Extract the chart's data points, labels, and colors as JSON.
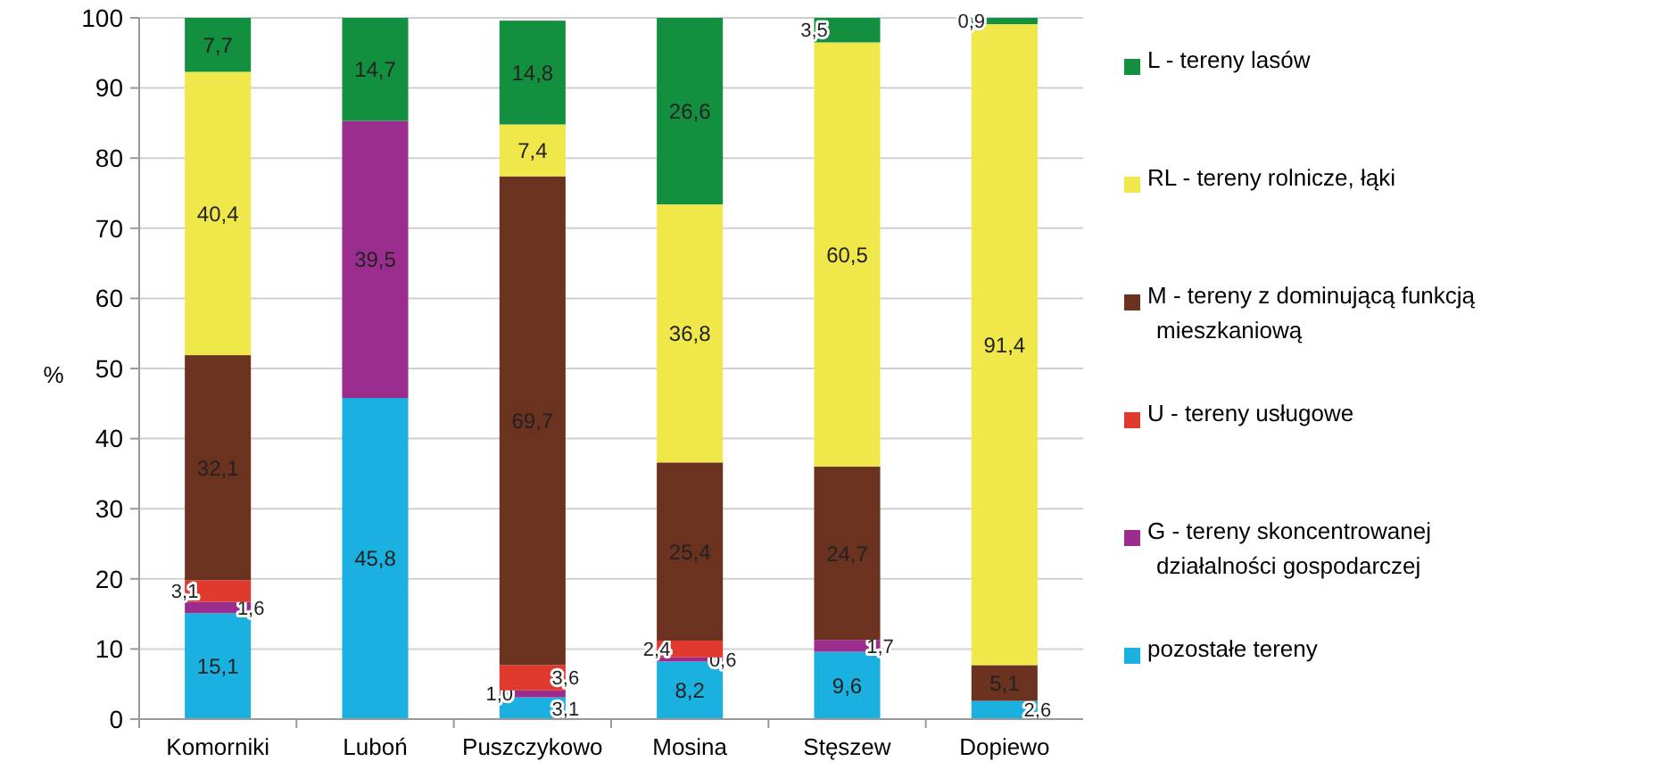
{
  "chart_data": {
    "type": "bar",
    "stacked": true,
    "ylabel": "%",
    "categories": [
      "Komorniki",
      "Luboń",
      "Puszczykowo",
      "Mosina",
      "Stęszew",
      "Dopiewo"
    ],
    "series": [
      {
        "name": "pozostałe tereny",
        "color": "#1ab0e0",
        "values": [
          15.1,
          45.8,
          3.1,
          8.2,
          9.6,
          2.6
        ],
        "value_labels": [
          "15,1",
          "45,8",
          "3,1",
          "8,2",
          "9,6",
          "2,6"
        ]
      },
      {
        "name": "G - tereny skoncentrowanej działalności gospodarczej",
        "color": "#9b2d8f",
        "values": [
          1.6,
          39.5,
          1.0,
          0.6,
          1.7,
          null
        ],
        "value_labels": [
          "1,6",
          "39,5",
          "1,0",
          "0,6",
          "1,7",
          null
        ]
      },
      {
        "name": "U - tereny usługowe",
        "color": "#e03a2e",
        "values": [
          3.1,
          null,
          3.6,
          2.4,
          null,
          null
        ],
        "value_labels": [
          "3,1",
          null,
          "3,6",
          "2,4",
          null,
          null
        ]
      },
      {
        "name": "M - tereny z dominującą funkcją mieszkaniową",
        "color": "#6b3220",
        "values": [
          32.1,
          null,
          69.7,
          25.4,
          24.7,
          5.1
        ],
        "value_labels": [
          "32,1",
          null,
          "69,7",
          "25,4",
          "24,7",
          "5,1"
        ]
      },
      {
        "name": "RL - tereny rolnicze, łąki",
        "color": "#f0e84a",
        "values": [
          40.4,
          null,
          7.4,
          36.8,
          60.5,
          91.4
        ],
        "value_labels": [
          "40,4",
          null,
          "7,4",
          "36,8",
          "60,5",
          "91,4"
        ]
      },
      {
        "name": "L - tereny lasów",
        "color": "#13903f",
        "values": [
          7.7,
          14.7,
          14.8,
          26.6,
          3.5,
          0.9
        ],
        "value_labels": [
          "7,7",
          "14,7",
          "14,8",
          "26,6",
          "3,5",
          "0,9"
        ]
      }
    ],
    "ylim": [
      0,
      100
    ],
    "yticks": [
      0,
      10,
      20,
      30,
      40,
      50,
      60,
      70,
      80,
      90,
      100
    ],
    "grid": "y",
    "legend": "right"
  }
}
